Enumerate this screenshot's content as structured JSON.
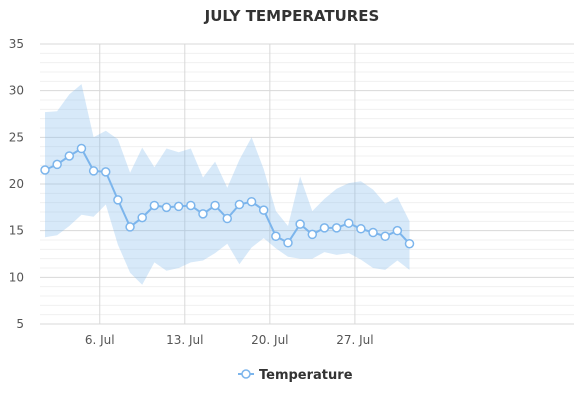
{
  "chart_data": {
    "type": "line",
    "title": "JULY TEMPERATURES",
    "xlabel": "",
    "ylabel": "",
    "ylim": [
      5,
      35
    ],
    "yticks": [
      5,
      10,
      15,
      20,
      25,
      30,
      35
    ],
    "x": [
      "1. Jul",
      "2. Jul",
      "3. Jul",
      "4. Jul",
      "5. Jul",
      "6. Jul",
      "7. Jul",
      "8. Jul",
      "9. Jul",
      "10. Jul",
      "11. Jul",
      "12. Jul",
      "13. Jul",
      "14. Jul",
      "15. Jul",
      "16. Jul",
      "17. Jul",
      "18. Jul",
      "19. Jul",
      "20. Jul",
      "21. Jul",
      "22. Jul",
      "23. Jul",
      "24. Jul",
      "25. Jul",
      "26. Jul",
      "27. Jul",
      "28. Jul",
      "29. Jul",
      "30. Jul",
      "31. Jul"
    ],
    "xtick_labels": [
      {
        "index": 5,
        "label": "6. Jul"
      },
      {
        "index": 12,
        "label": "13. Jul"
      },
      {
        "index": 19,
        "label": "20. Jul"
      },
      {
        "index": 26,
        "label": "27. Jul"
      }
    ],
    "series": [
      {
        "name": "Temperature",
        "type": "line",
        "color": "#7cb5ec",
        "values": [
          21.5,
          22.1,
          23.0,
          23.8,
          21.4,
          21.3,
          18.3,
          15.4,
          16.4,
          17.7,
          17.5,
          17.6,
          17.7,
          16.8,
          17.7,
          16.3,
          17.8,
          18.1,
          17.2,
          14.4,
          13.7,
          15.7,
          14.6,
          15.3,
          15.3,
          15.8,
          15.2,
          14.8,
          14.4,
          15.0,
          13.6
        ]
      },
      {
        "name": "",
        "type": "range",
        "color": "#7cb5ec",
        "low": [
          14.3,
          14.5,
          15.5,
          16.7,
          16.5,
          17.8,
          13.5,
          10.5,
          9.2,
          11.6,
          10.7,
          11.0,
          11.6,
          11.8,
          12.6,
          13.6,
          11.4,
          13.2,
          14.2,
          13.1,
          12.2,
          12.0,
          12.0,
          12.7,
          12.4,
          12.6,
          11.9,
          11.0,
          10.8,
          11.8,
          10.8
        ],
        "high": [
          27.7,
          27.8,
          29.6,
          30.7,
          25.0,
          25.7,
          24.8,
          21.2,
          23.9,
          21.8,
          23.8,
          23.4,
          23.8,
          20.7,
          22.4,
          19.6,
          22.6,
          25.0,
          21.6,
          17.1,
          15.5,
          20.8,
          17.1,
          18.4,
          19.5,
          20.1,
          20.3,
          19.4,
          17.9,
          18.6,
          16.0
        ]
      }
    ],
    "legend": {
      "position": "bottom-center",
      "items": [
        "Temperature"
      ]
    },
    "grid": true,
    "colors": {
      "line": "#7cb5ec",
      "range_fill": "#7cb5ec",
      "grid_major": "#d8d8d8",
      "grid_minor": "#f0f0f0"
    }
  }
}
